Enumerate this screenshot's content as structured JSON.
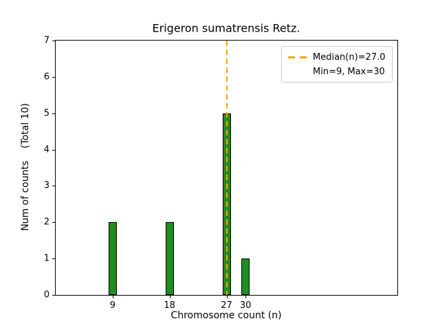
{
  "chart_data": {
    "type": "bar",
    "title": "Erigeron sumatrensis Retz.",
    "xlabel": "Chromosome count (n)",
    "ylabel": "Num of counts    (Total 10)",
    "categories": [
      9,
      18,
      27,
      30
    ],
    "values": [
      2,
      2,
      5,
      1
    ],
    "xticks": [
      9,
      18,
      27,
      30
    ],
    "yticks": [
      0,
      1,
      2,
      3,
      4,
      5,
      6,
      7
    ],
    "xlim": [
      0,
      54
    ],
    "ylim": [
      0,
      7
    ],
    "grid": "off",
    "bar_color": "#228B22",
    "bar_edge_color": "#000000",
    "median": 27.0,
    "median_line_color": "#FFA500",
    "median_line_style": "dashed",
    "legend_position": "upper right",
    "legend": [
      {
        "label": "Median(n)=27.0",
        "marker": "orange-dashed-line",
        "marker_color": "#FFA500"
      },
      {
        "label": "Min=9, Max=30",
        "marker": "none"
      }
    ]
  }
}
